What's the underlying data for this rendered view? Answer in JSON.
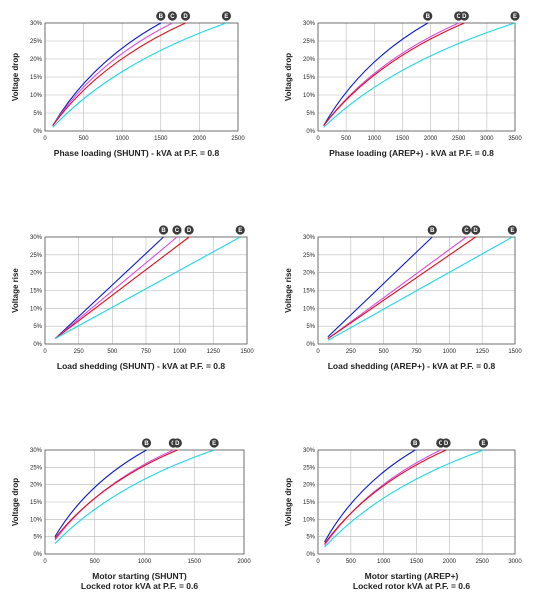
{
  "chart_data": [
    {
      "type": "line",
      "xlabel": [
        "Phase loading (SHUNT) - kVA at P.F. = 0.8"
      ],
      "ylabel": "Voltage drop",
      "xlim": [
        0,
        2500
      ],
      "ylim": [
        0,
        30
      ],
      "xticks": [
        0,
        500,
        1000,
        1500,
        2000,
        2500
      ],
      "yticks": [
        0,
        5,
        10,
        15,
        20,
        25,
        30
      ],
      "grid": true,
      "series": [
        {
          "name": "B",
          "color": "#0a1ad0",
          "curve": "concave",
          "points": [
            [
              100,
              1.5
            ],
            [
              1500,
              30
            ]
          ]
        },
        {
          "name": "C",
          "color": "#e04ae0",
          "curve": "concave",
          "points": [
            [
              100,
              1.5
            ],
            [
              1650,
              30
            ]
          ]
        },
        {
          "name": "D",
          "color": "#d8101a",
          "curve": "concave",
          "points": [
            [
              100,
              1.5
            ],
            [
              1820,
              30
            ]
          ]
        },
        {
          "name": "E",
          "color": "#1ad8e6",
          "curve": "concave",
          "points": [
            [
              100,
              1.0
            ],
            [
              2350,
              30
            ]
          ]
        }
      ]
    },
    {
      "type": "line",
      "xlabel": [
        "Phase loading (AREP+) - kVA at P.F. = 0.8"
      ],
      "ylabel": "Voltage drop",
      "xlim": [
        0,
        3500
      ],
      "ylim": [
        0,
        30
      ],
      "xticks": [
        0,
        500,
        1000,
        1500,
        2000,
        2500,
        3000,
        3500
      ],
      "yticks": [
        0,
        5,
        10,
        15,
        20,
        25,
        30
      ],
      "grid": true,
      "series": [
        {
          "name": "B",
          "color": "#0a1ad0",
          "curve": "concave",
          "points": [
            [
              100,
              1.5
            ],
            [
              1950,
              30
            ]
          ]
        },
        {
          "name": "C",
          "color": "#e04ae0",
          "curve": "concave",
          "points": [
            [
              100,
              1.5
            ],
            [
              2500,
              30
            ]
          ]
        },
        {
          "name": "D",
          "color": "#d8101a",
          "curve": "concave",
          "points": [
            [
              100,
              1.5
            ],
            [
              2600,
              30
            ]
          ]
        },
        {
          "name": "E",
          "color": "#1ad8e6",
          "curve": "concave",
          "points": [
            [
              100,
              1.0
            ],
            [
              3500,
              30
            ]
          ]
        }
      ]
    },
    {
      "type": "line",
      "xlabel": [
        "Load shedding (SHUNT) - kVA at P.F. = 0.8"
      ],
      "ylabel": "Voltage rise",
      "xlim": [
        0,
        1500
      ],
      "ylim": [
        0,
        30
      ],
      "xticks": [
        0,
        250,
        500,
        750,
        1000,
        1250,
        1500
      ],
      "yticks": [
        0,
        5,
        10,
        15,
        20,
        25,
        30
      ],
      "grid": true,
      "series": [
        {
          "name": "B",
          "color": "#0a1ad0",
          "curve": "linear",
          "points": [
            [
              75,
              1.5
            ],
            [
              880,
              30
            ]
          ]
        },
        {
          "name": "C",
          "color": "#e04ae0",
          "curve": "linear",
          "points": [
            [
              75,
              1.5
            ],
            [
              980,
              30
            ]
          ]
        },
        {
          "name": "D",
          "color": "#d8101a",
          "curve": "linear",
          "points": [
            [
              75,
              1.5
            ],
            [
              1070,
              30
            ]
          ]
        },
        {
          "name": "E",
          "color": "#1ad8e6",
          "curve": "linear",
          "points": [
            [
              75,
              1.5
            ],
            [
              1450,
              30
            ]
          ]
        }
      ]
    },
    {
      "type": "line",
      "xlabel": [
        "Load shedding (AREP+) - kVA at P.F. = 0.8"
      ],
      "ylabel": "Voltage rise",
      "xlim": [
        0,
        1500
      ],
      "ylim": [
        0,
        30
      ],
      "xticks": [
        0,
        250,
        500,
        750,
        1000,
        1250,
        1500
      ],
      "yticks": [
        0,
        5,
        10,
        15,
        20,
        25,
        30
      ],
      "grid": true,
      "series": [
        {
          "name": "B",
          "color": "#0a1ad0",
          "curve": "linear",
          "points": [
            [
              75,
              2.0
            ],
            [
              870,
              30
            ]
          ]
        },
        {
          "name": "C",
          "color": "#e04ae0",
          "curve": "linear",
          "points": [
            [
              75,
              1.5
            ],
            [
              1130,
              30
            ]
          ]
        },
        {
          "name": "D",
          "color": "#d8101a",
          "curve": "linear",
          "points": [
            [
              75,
              1.5
            ],
            [
              1200,
              30
            ]
          ]
        },
        {
          "name": "E",
          "color": "#1ad8e6",
          "curve": "linear",
          "points": [
            [
              75,
              1.0
            ],
            [
              1480,
              30
            ]
          ]
        }
      ]
    },
    {
      "type": "line",
      "xlabel": [
        "Motor starting (SHUNT)",
        "Locked rotor kVA at P.F. = 0.6"
      ],
      "ylabel": "Voltage drop",
      "xlim": [
        0,
        2000
      ],
      "ylim": [
        0,
        30
      ],
      "xticks": [
        0,
        500,
        1000,
        1500,
        2000
      ],
      "yticks": [
        0,
        5,
        10,
        15,
        20,
        25,
        30
      ],
      "grid": true,
      "series": [
        {
          "name": "B",
          "color": "#0a1ad0",
          "curve": "concave",
          "points": [
            [
              100,
              5.0
            ],
            [
              1020,
              30
            ]
          ]
        },
        {
          "name": "C",
          "color": "#e04ae0",
          "curve": "concave",
          "points": [
            [
              100,
              4.0
            ],
            [
              1290,
              30
            ]
          ]
        },
        {
          "name": "D",
          "color": "#d8101a",
          "curve": "concave",
          "points": [
            [
              100,
              4.5
            ],
            [
              1330,
              30
            ]
          ]
        },
        {
          "name": "E",
          "color": "#1ad8e6",
          "curve": "concave",
          "points": [
            [
              100,
              3.0
            ],
            [
              1700,
              30
            ]
          ]
        }
      ]
    },
    {
      "type": "line",
      "xlabel": [
        "Motor starting (AREP+)",
        "Locked rotor kVA at P.F. = 0.6"
      ],
      "ylabel": "Voltage drop",
      "xlim": [
        0,
        3000
      ],
      "ylim": [
        0,
        30
      ],
      "xticks": [
        0,
        500,
        1000,
        1500,
        2000,
        2500,
        3000
      ],
      "yticks": [
        0,
        5,
        10,
        15,
        20,
        25,
        30
      ],
      "grid": true,
      "series": [
        {
          "name": "B",
          "color": "#0a1ad0",
          "curve": "concave",
          "points": [
            [
              100,
              3.5
            ],
            [
              1480,
              30
            ]
          ]
        },
        {
          "name": "C",
          "color": "#e04ae0",
          "curve": "concave",
          "points": [
            [
              100,
              2.5
            ],
            [
              1870,
              30
            ]
          ]
        },
        {
          "name": "D",
          "color": "#d8101a",
          "curve": "concave",
          "points": [
            [
              100,
              3.0
            ],
            [
              1950,
              30
            ]
          ]
        },
        {
          "name": "E",
          "color": "#1ad8e6",
          "curve": "concave",
          "points": [
            [
              100,
              2.0
            ],
            [
              2520,
              30
            ]
          ]
        }
      ]
    }
  ]
}
